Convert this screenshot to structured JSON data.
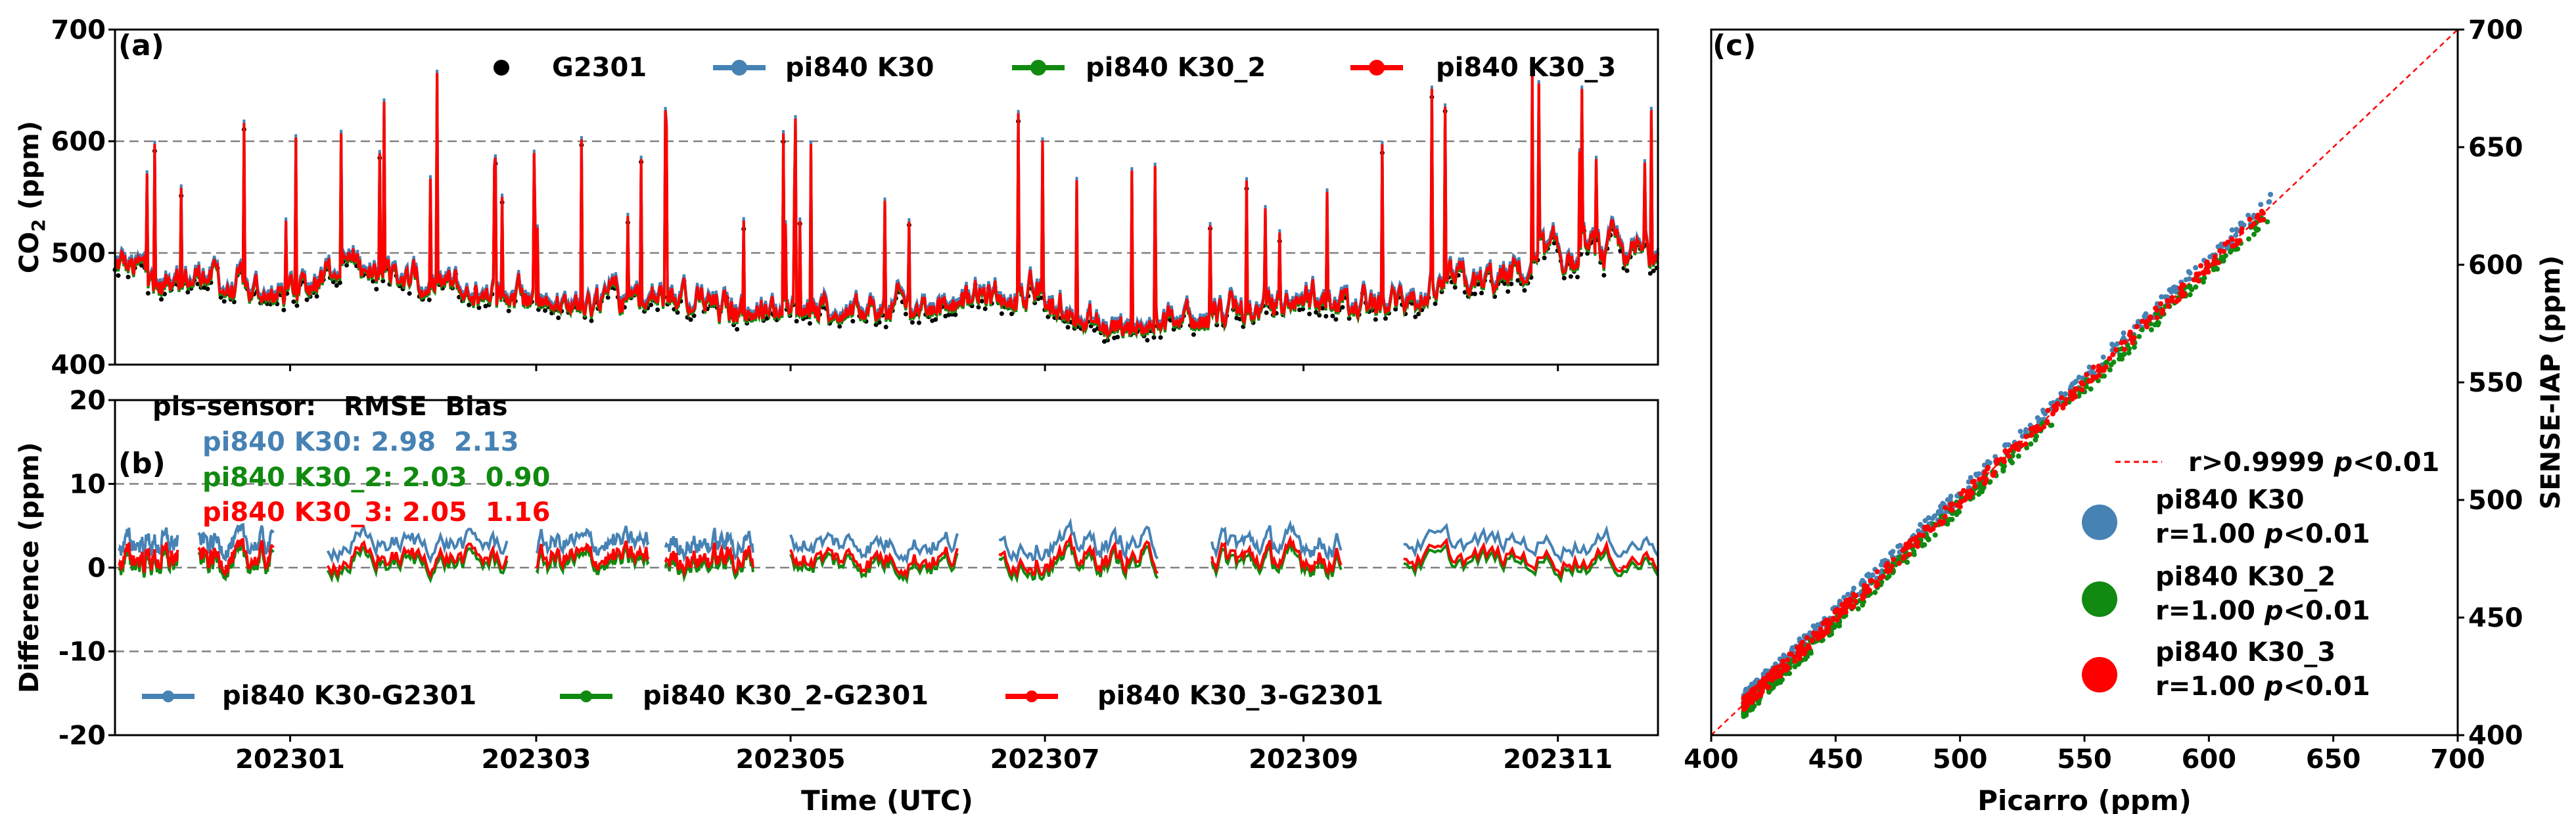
{
  "colors": {
    "g2301": "#000000",
    "k30": "#4682B4",
    "k30_2": "#108A10",
    "k30_3": "#FF0000",
    "one_to_one": "#FF0000",
    "grid": "#808080"
  },
  "panel_a": {
    "label": "(a)",
    "ylabel_main": "CO",
    "ylabel_sub": "2",
    "ylabel_unit": " (ppm)",
    "legend": [
      "G2301",
      "pi840 K30",
      "pi840 K30_2",
      "pi840 K30_3"
    ]
  },
  "panel_b": {
    "label": "(b)",
    "ylabel": "Difference (ppm)",
    "stats_header": "pis-sensor:   RMSE  Bias",
    "stats": [
      {
        "text": "pi840 K30: 2.98  2.13"
      },
      {
        "text": "pi840 K30_2: 2.03  0.90"
      },
      {
        "text": "pi840 K30_3: 2.05  1.16"
      }
    ],
    "legend": [
      "pi840 K30-G2301",
      "pi840 K30_2-G2301",
      "pi840 K30_3-G2301"
    ]
  },
  "panel_c": {
    "label": "(c)",
    "xlabel": "Picarro (ppm)",
    "ylabel": "SENSE-IAP (ppm)",
    "legend_line": "r>0.9999 ",
    "legend_line_p": "p",
    "legend_line_end": "<0.01",
    "legend_entries": [
      {
        "name": "pi840 K30",
        "stat": "r=1.00 ",
        "p": "p",
        "end": "<0.01"
      },
      {
        "name": "pi840 K30_2",
        "stat": "r=1.00 ",
        "p": "p",
        "end": "<0.01"
      },
      {
        "name": "pi840 K30_3",
        "stat": "r=1.00 ",
        "p": "p",
        "end": "<0.01"
      }
    ]
  },
  "shared_x": {
    "xlabel": "Time (UTC)",
    "tick_labels": [
      "202301",
      "202303",
      "202305",
      "202307",
      "202309",
      "202311"
    ]
  },
  "chart_data": [
    {
      "type": "line",
      "panel": "a",
      "ylabel": "CO2 (ppm)",
      "ylim": [
        400,
        700
      ],
      "yticks": [
        400,
        500,
        600,
        700
      ],
      "xlim": [
        "2022-11-20",
        "2023-11-25"
      ],
      "xticks": [
        "2023-01-01",
        "2023-03-01",
        "2023-05-01",
        "2023-07-01",
        "2023-09-01",
        "2023-11-01"
      ],
      "grid": "horizontal dashed",
      "legend_position": "top",
      "series": [
        {
          "name": "G2301",
          "style": "scatter"
        },
        {
          "name": "pi840 K30"
        },
        {
          "name": "pi840 K30_2"
        },
        {
          "name": "pi840 K30_3"
        }
      ],
      "x": [
        "2022-11-21",
        "2022-12-01",
        "2022-12-10",
        "2022-12-20",
        "2023-01-01",
        "2023-01-15",
        "2023-02-01",
        "2023-02-15",
        "2023-03-01",
        "2023-03-15",
        "2023-04-01",
        "2023-04-15",
        "2023-05-01",
        "2023-05-15",
        "2023-06-01",
        "2023-06-15",
        "2023-07-01",
        "2023-07-15",
        "2023-08-01",
        "2023-08-15",
        "2023-09-01",
        "2023-09-15",
        "2023-10-01",
        "2023-10-15",
        "2023-11-01",
        "2023-11-15"
      ],
      "k30_3_values": [
        500,
        480,
        490,
        475,
        470,
        500,
        480,
        470,
        470,
        460,
        470,
        455,
        460,
        455,
        460,
        470,
        465,
        440,
        450,
        450,
        470,
        460,
        470,
        480,
        500,
        505
      ]
    },
    {
      "type": "line",
      "panel": "b",
      "ylabel": "Difference (ppm)",
      "ylim": [
        -20,
        20
      ],
      "yticks": [
        -20,
        -10,
        0,
        10,
        20
      ],
      "grid": "horizontal dashed",
      "legend_position": "bottom",
      "series": [
        {
          "name": "pi840 K30-G2301",
          "rmse": 2.98,
          "bias": 2.13
        },
        {
          "name": "pi840 K30_2-G2301",
          "rmse": 2.03,
          "bias": 0.9
        },
        {
          "name": "pi840 K30_3-G2301",
          "rmse": 2.05,
          "bias": 1.16
        }
      ]
    },
    {
      "type": "scatter",
      "panel": "c",
      "xlabel": "Picarro (ppm)",
      "ylabel": "SENSE-IAP (ppm)",
      "xlim": [
        400,
        700
      ],
      "ylim": [
        400,
        700
      ],
      "xticks": [
        400,
        450,
        500,
        550,
        600,
        650,
        700
      ],
      "yticks": [
        400,
        450,
        500,
        550,
        600,
        650,
        700
      ],
      "legend_position": "right",
      "data_range": [
        413,
        625
      ],
      "series": [
        {
          "name": "pi840 K30",
          "r": 1.0
        },
        {
          "name": "pi840 K30_2",
          "r": 1.0
        },
        {
          "name": "pi840 K30_3",
          "r": 1.0
        }
      ]
    }
  ]
}
